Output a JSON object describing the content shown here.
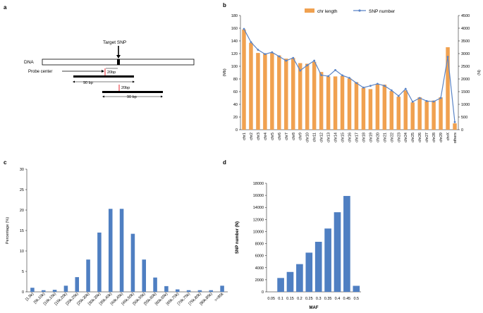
{
  "panels": {
    "a": {
      "letter": "a",
      "target_snp": "Target  SNP",
      "dna": "DNA",
      "probe_center": "Probe center",
      "offset_1": "20bp",
      "offset_2": "20bp",
      "length_1": "90 bp",
      "length_2": "90 bp"
    },
    "b": {
      "letter": "b"
    },
    "c": {
      "letter": "c"
    },
    "d": {
      "letter": "d"
    }
  },
  "colors": {
    "orange": "#f0a150",
    "blue_line": "#5a84c6",
    "blue_bar": "#4f7fc2",
    "grid": "#d9d9d9"
  },
  "chart_data": [
    {
      "id": "b",
      "type": "bar+line",
      "categories": [
        "chr1",
        "chr2",
        "chr3",
        "chr4",
        "chr5",
        "chr6",
        "chr7",
        "chr8",
        "chr9",
        "chr10",
        "chr11",
        "chr12",
        "chr13",
        "chr14",
        "chr15",
        "chr16",
        "chr17",
        "chr18",
        "chr19",
        "chr20",
        "chr21",
        "chr22",
        "chr23",
        "chr24",
        "chr25",
        "chr26",
        "chr27",
        "chr28",
        "chr29",
        "chrX",
        "others"
      ],
      "series": [
        {
          "name": "chr length",
          "type": "bar",
          "axis": "left",
          "values": [
            158,
            137,
            121,
            120,
            121,
            117,
            112,
            113,
            105,
            104,
            107,
            91,
            84,
            84,
            85,
            81,
            75,
            66,
            64,
            72,
            71,
            61,
            52,
            62,
            43,
            51,
            45,
            46,
            51,
            130,
            10
          ]
        },
        {
          "name": "SNP number",
          "type": "line",
          "axis": "right",
          "values": [
            3970,
            3450,
            3150,
            2980,
            3050,
            2890,
            2720,
            2830,
            2330,
            2540,
            2720,
            2150,
            2110,
            2350,
            2140,
            2040,
            1840,
            1660,
            1730,
            1810,
            1730,
            1550,
            1330,
            1610,
            1100,
            1250,
            1130,
            1110,
            1250,
            2870,
            300
          ]
        }
      ],
      "ylabel_left": "(Mb)",
      "ylim_left": [
        0,
        180
      ],
      "yticks_left": [
        0,
        20,
        40,
        60,
        80,
        100,
        120,
        140,
        160,
        180
      ],
      "ylabel_right": "(N)",
      "ylim_right": [
        0,
        4500
      ],
      "yticks_right": [
        0,
        500,
        1000,
        1500,
        2000,
        2500,
        3000,
        3500,
        4000,
        4500
      ],
      "legend": [
        "chr length",
        "SNP number"
      ],
      "legend_position": "top"
    },
    {
      "id": "c",
      "type": "bar",
      "categories": [
        "[1,5k)",
        "[5k,10k)",
        "[10k,15k)",
        "[15k,20k)",
        "[20k,25k)",
        "[25k,30k)",
        "[30k,35k)",
        "[35k,40k)",
        "[40k,45k)",
        "[45k,50k)",
        "[50k,55k)",
        "[55k,60k)",
        "[60k,65k)",
        "[65k,70k)",
        "[70k,75k)",
        "[75k,80k)",
        "[80k,85k)",
        ">=85k"
      ],
      "values": [
        1.0,
        0.4,
        0.5,
        1.5,
        3.6,
        7.9,
        14.5,
        20.3,
        20.3,
        14.2,
        7.9,
        3.5,
        1.4,
        0.6,
        0.4,
        0.4,
        0.4,
        1.5
      ],
      "ylabel": "Percentage (%)",
      "ylim": [
        0,
        30
      ],
      "yticks": [
        0,
        5,
        10,
        15,
        20,
        25,
        30
      ]
    },
    {
      "id": "d",
      "type": "bar",
      "categories": [
        "0.05",
        "0.1",
        "0.15",
        "0.2",
        "0.25",
        "0.3",
        "0.35",
        "0.4",
        "0.45",
        "0.5"
      ],
      "values": [
        0,
        2300,
        3300,
        4600,
        6500,
        8300,
        10500,
        13200,
        15900,
        1000
      ],
      "xlabel": "MAF",
      "ylabel": "SNP number (N)",
      "ylim": [
        0,
        18000
      ],
      "yticks": [
        0,
        2000,
        4000,
        6000,
        8000,
        10000,
        12000,
        14000,
        16000,
        18000
      ]
    }
  ]
}
